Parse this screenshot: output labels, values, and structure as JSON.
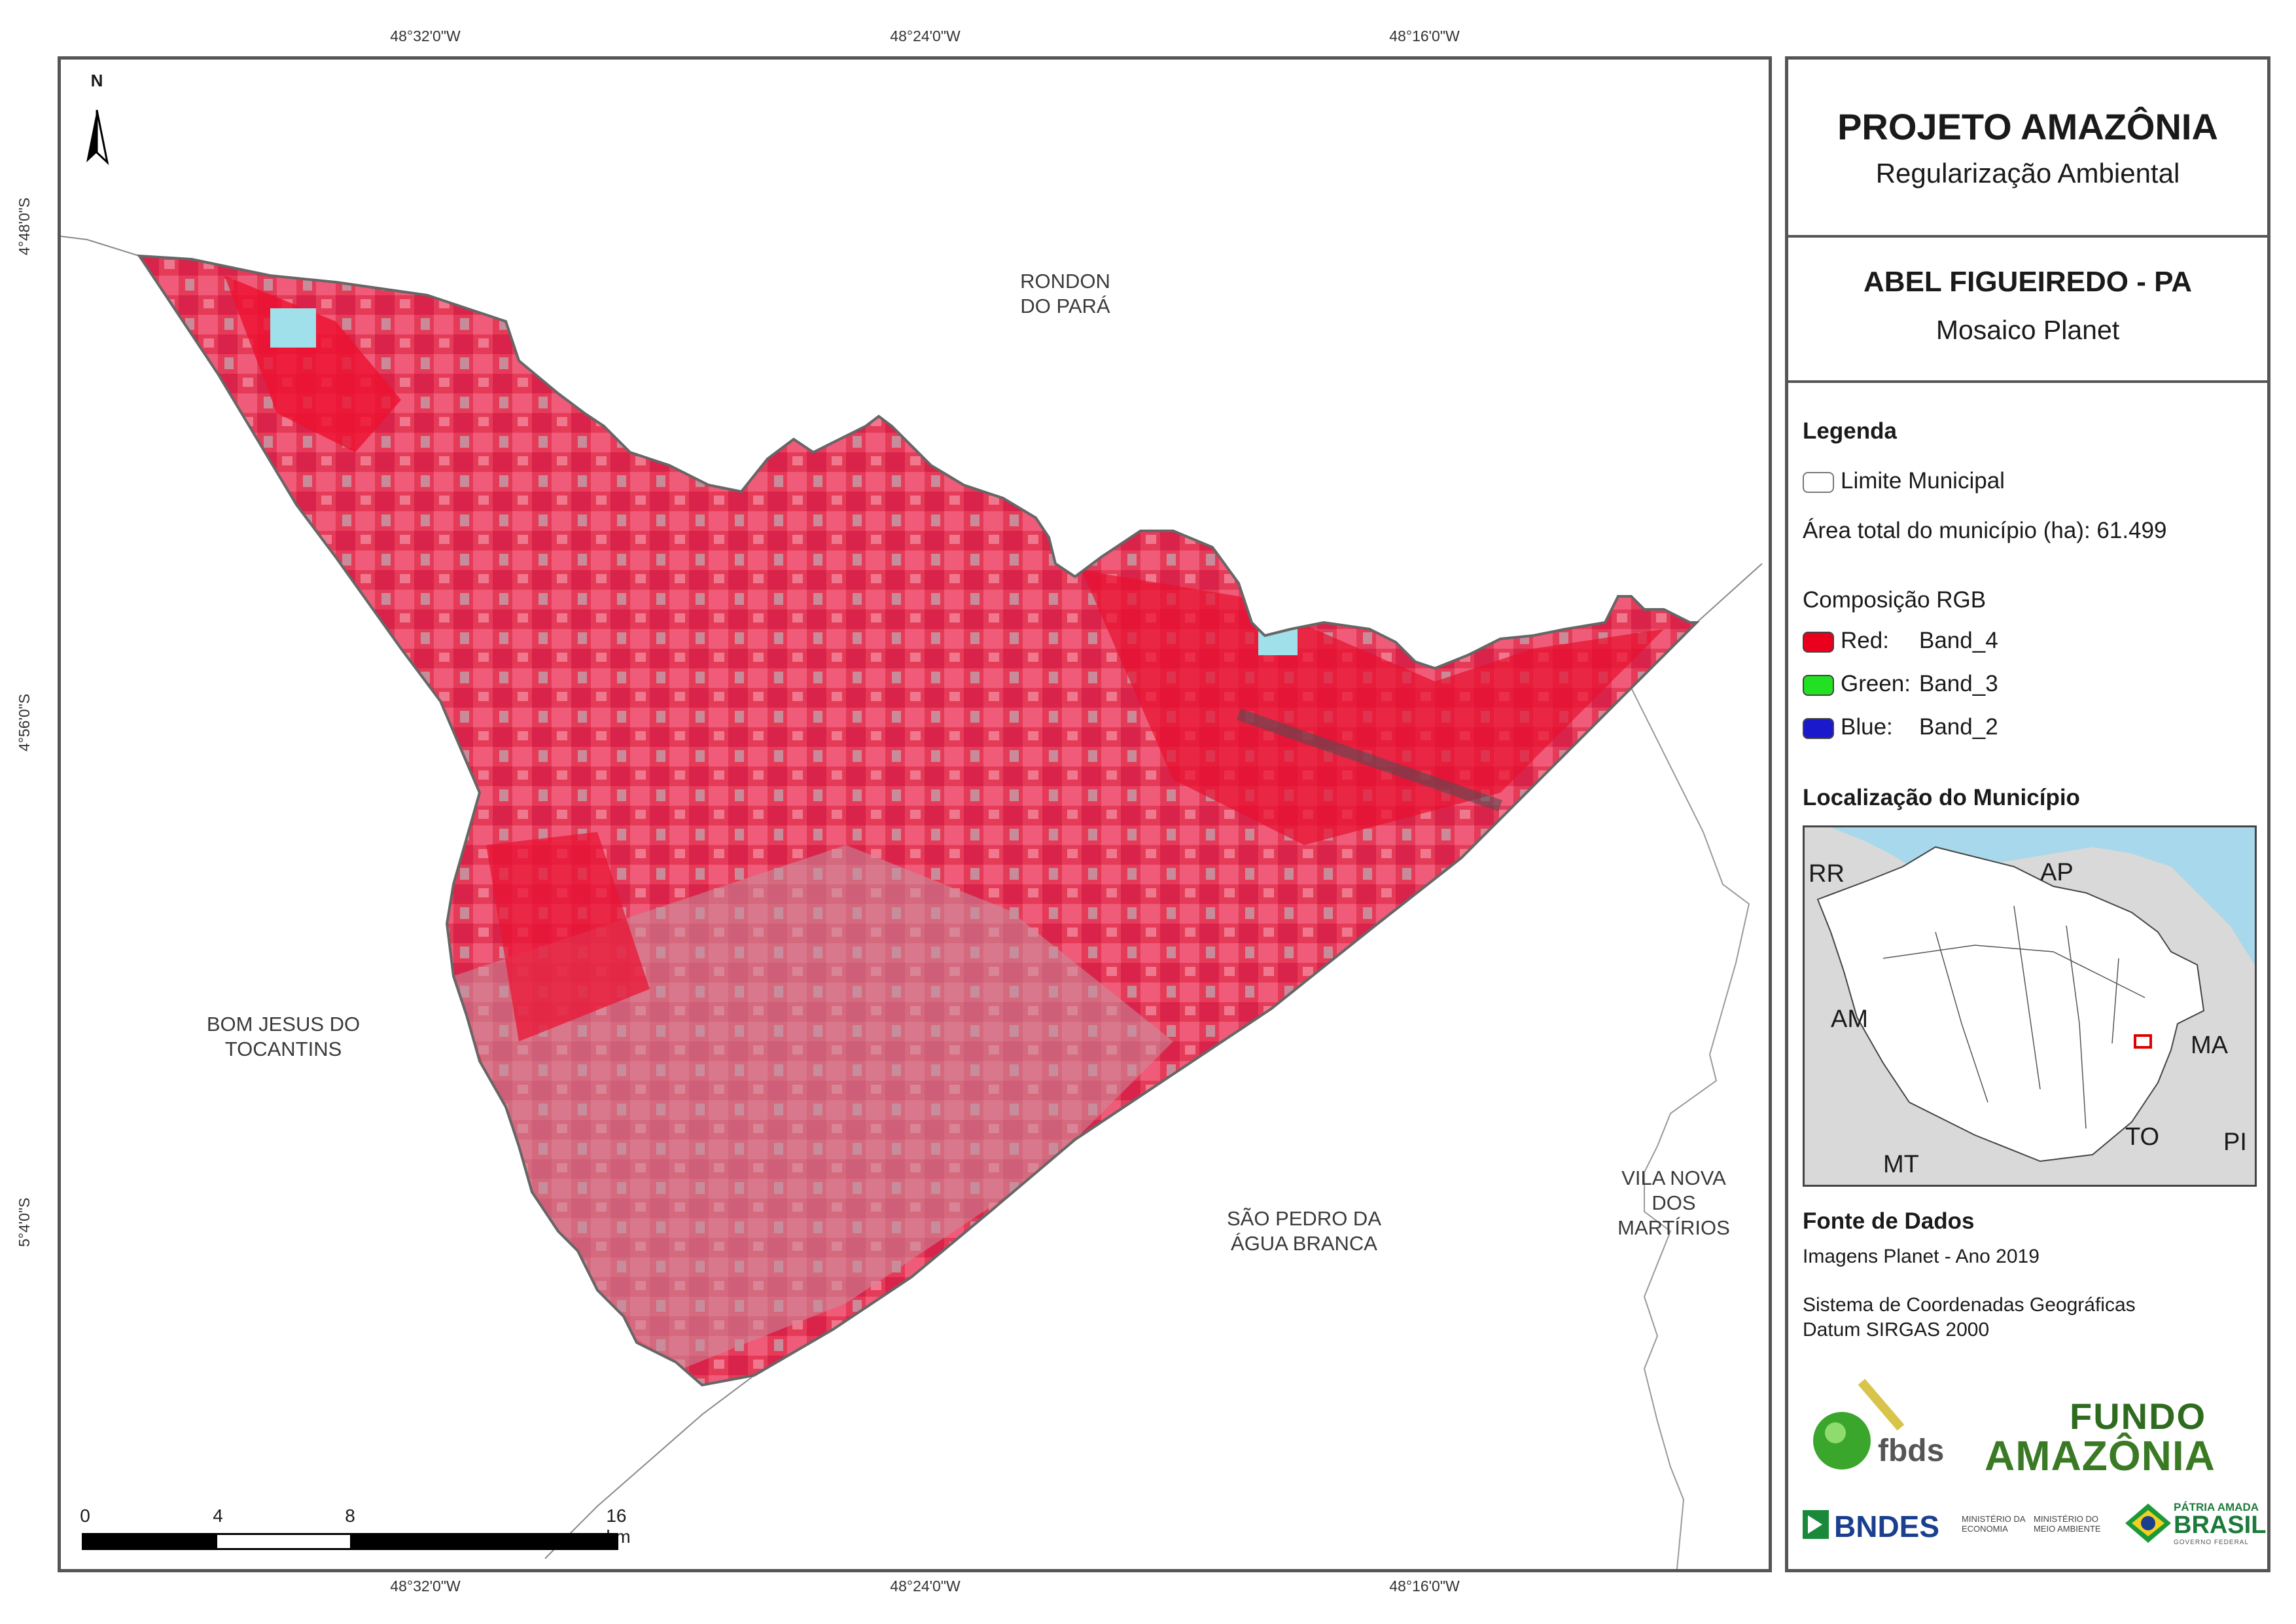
{
  "coordinates": {
    "longitudes": [
      "48°32'0\"W",
      "48°24'0\"W",
      "48°16'0\"W"
    ],
    "latitudes": [
      "4°48'0\"S",
      "4°56'0\"S",
      "5°4'0\"S"
    ]
  },
  "map": {
    "north_arrow_label": "N",
    "neighbors": [
      {
        "name": "RONDON\nDO PARÁ"
      },
      {
        "name": "BOM JESUS DO\nTOCANTINS"
      },
      {
        "name": "SÃO PEDRO DA\nÁGUA BRANCA"
      },
      {
        "name": "VILA NOVA\nDOS MARTÍRIOS"
      }
    ],
    "scale": {
      "labels": [
        "0",
        "4",
        "8",
        "16 km"
      ]
    }
  },
  "panel": {
    "title": "PROJETO AMAZÔNIA",
    "subtitle": "Regularização Ambiental",
    "municipality": "ABEL FIGUEIREDO - PA",
    "product": "Mosaico Planet",
    "legend": {
      "heading": "Legenda",
      "boundary_label": "Limite Municipal",
      "area_text": "Área total do município (ha): 61.499",
      "composition_heading": "Composição RGB",
      "bands": [
        {
          "name": "Red:",
          "value": "Band_4",
          "color": "#e8001c"
        },
        {
          "name": "Green:",
          "value": "Band_3",
          "color": "#22e022"
        },
        {
          "name": "Blue:",
          "value": "Band_2",
          "color": "#1a1acc"
        }
      ]
    },
    "location": {
      "heading": "Localização do Município",
      "states": [
        "RR",
        "AP",
        "AM",
        "MA",
        "TO",
        "MT",
        "PI"
      ]
    },
    "sources": {
      "heading": "Fonte de Dados",
      "line1": "Imagens Planet - Ano 2019",
      "line2": "Sistema de Coordenadas Geográficas",
      "line3": "Datum SIRGAS 2000"
    },
    "logos": {
      "fbds": "fbds",
      "fundo_line1": "FUNDO",
      "fundo_line2": "AMAZÔNIA",
      "bndes": "BNDES",
      "min_economia": "MINISTÉRIO DA\nECONOMIA",
      "min_meio_ambiente": "MINISTÉRIO DO\nMEIO AMBIENTE",
      "patria_line1": "PÁTRIA AMADA",
      "patria_line2": "BRASIL",
      "patria_line3": "GOVERNO FEDERAL"
    }
  }
}
